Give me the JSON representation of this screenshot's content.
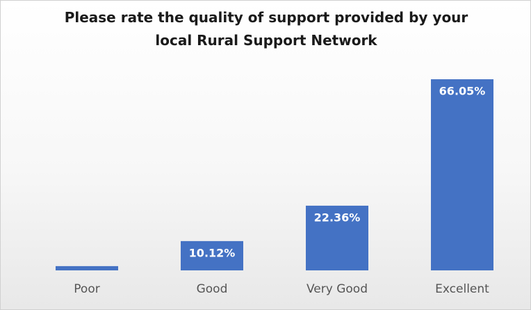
{
  "chart_data": {
    "type": "bar",
    "title": "Please rate the quality of support provided by your local Rural Support Network",
    "categories": [
      "Poor",
      "Good",
      "Very Good",
      "Excellent"
    ],
    "values": [
      1.47,
      10.12,
      22.36,
      66.05
    ],
    "value_labels": [
      null,
      "10.12%",
      "22.36%",
      "66.05%"
    ],
    "color": "#4472c4"
  }
}
